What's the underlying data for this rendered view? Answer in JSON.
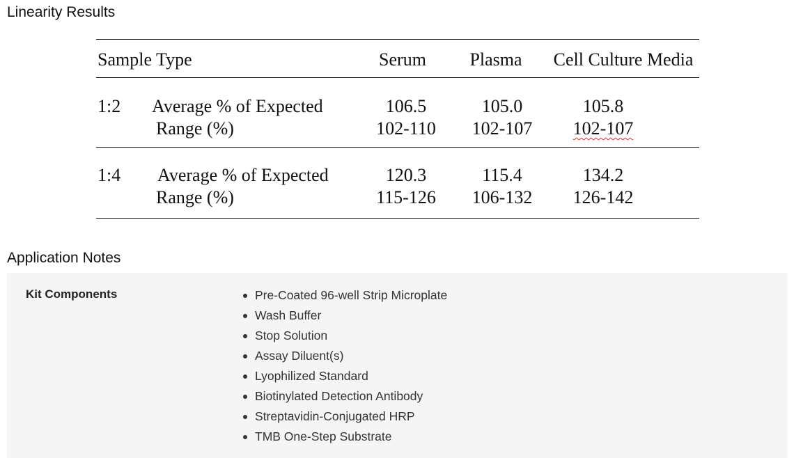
{
  "linearity": {
    "title": "Linearity Results",
    "table": {
      "header": [
        "Sample Type",
        "Serum",
        "Plasma",
        "Cell Culture Media"
      ],
      "groups": [
        {
          "dilution": "1:2",
          "rows": [
            {
              "label": "Average % of Expected",
              "values": [
                "106.5",
                "105.0",
                "105.8"
              ]
            },
            {
              "label": "Range (%)",
              "values": [
                "102-110",
                "102-107",
                "102-107"
              ]
            }
          ]
        },
        {
          "dilution": "1:4",
          "rows": [
            {
              "label": "Average % of Expected",
              "values": [
                "120.3",
                "115.4",
                "134.2"
              ]
            },
            {
              "label": "Range (%)",
              "values": [
                "115-126",
                "106-132",
                "126-142"
              ]
            }
          ]
        }
      ]
    }
  },
  "application_notes": {
    "title": "Application Notes",
    "kit_components": {
      "label": "Kit Components",
      "items": [
        "Pre-Coated 96-well Strip Microplate",
        "Wash Buffer",
        "Stop Solution",
        "Assay Diluent(s)",
        "Lyophilized Standard",
        "Biotinylated Detection Antibody",
        "Streptavidin-Conjugated HRP",
        "TMB One-Step Substrate"
      ]
    }
  }
}
